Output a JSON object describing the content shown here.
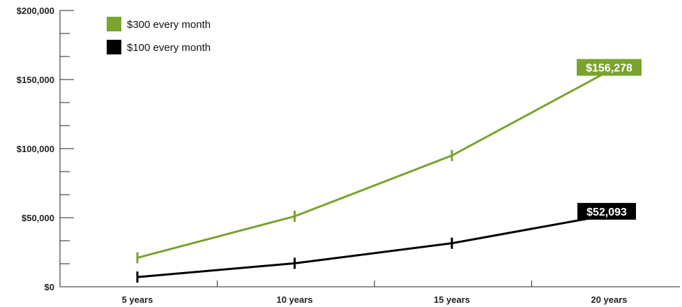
{
  "chart_data": {
    "type": "line",
    "categories": [
      "5 years",
      "10 years",
      "15 years",
      "20 years"
    ],
    "y_ticks": [
      "$0",
      "$50,000",
      "$100,000",
      "$150,000",
      "$200,000"
    ],
    "ylim": [
      0,
      200000
    ],
    "grid": false,
    "legend_position": "top-left",
    "series": [
      {
        "name": "$300 every month",
        "color": "#7aa32f",
        "values": [
          21000,
          51000,
          95000,
          156278
        ],
        "end_label": "$156,278"
      },
      {
        "name": "$100 every month",
        "color": "#000000",
        "values": [
          7000,
          17000,
          31500,
          52093
        ],
        "end_label": "$52,093"
      }
    ]
  }
}
